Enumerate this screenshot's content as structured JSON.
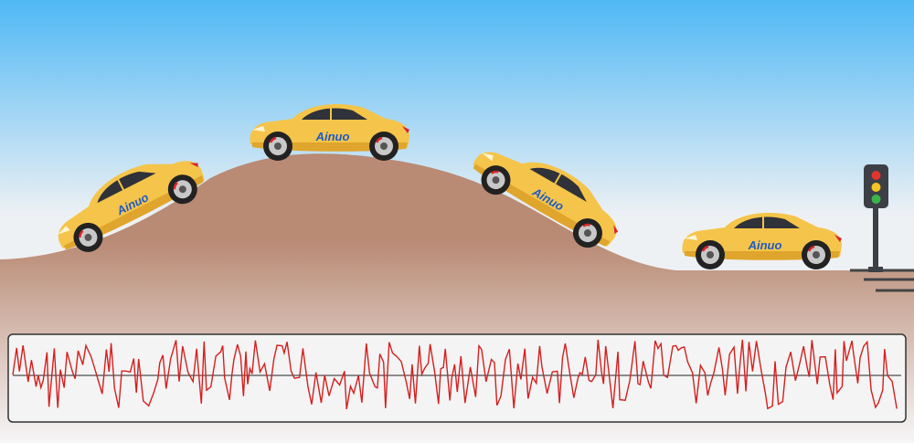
{
  "scene": {
    "sky_top": "#4fb8f5",
    "sky_bottom": "#eef1f4",
    "hill_top": "#b98a74",
    "hill_bottom": "#f6f6f7",
    "road_stripes": "#444444"
  },
  "cars": [
    {
      "id": "car-climbing",
      "label": "Ainuo",
      "tilt": "uphill"
    },
    {
      "id": "car-crest",
      "label": "Ainuo",
      "tilt": "level"
    },
    {
      "id": "car-descending",
      "label": "Ainuo",
      "tilt": "downhill"
    },
    {
      "id": "car-flat",
      "label": "Ainuo",
      "tilt": "level"
    }
  ],
  "car_colors": {
    "body": "#f5c44a",
    "body_shade": "#e0a52c",
    "window": "#2f3238",
    "tire": "#222222",
    "rim": "#c8c8c8",
    "brake": "#d8262b",
    "label": "#1e5bc6"
  },
  "traffic_light": {
    "icon": "traffic-light-icon",
    "lamps": [
      "#e0342d",
      "#f3c322",
      "#3bb54a"
    ],
    "housing": "#3d3f46"
  },
  "signal_panel": {
    "line_color": "#d61f1f",
    "border": "#333333",
    "background": "#f4f4f4",
    "waveform": "random road-excitation signal"
  }
}
